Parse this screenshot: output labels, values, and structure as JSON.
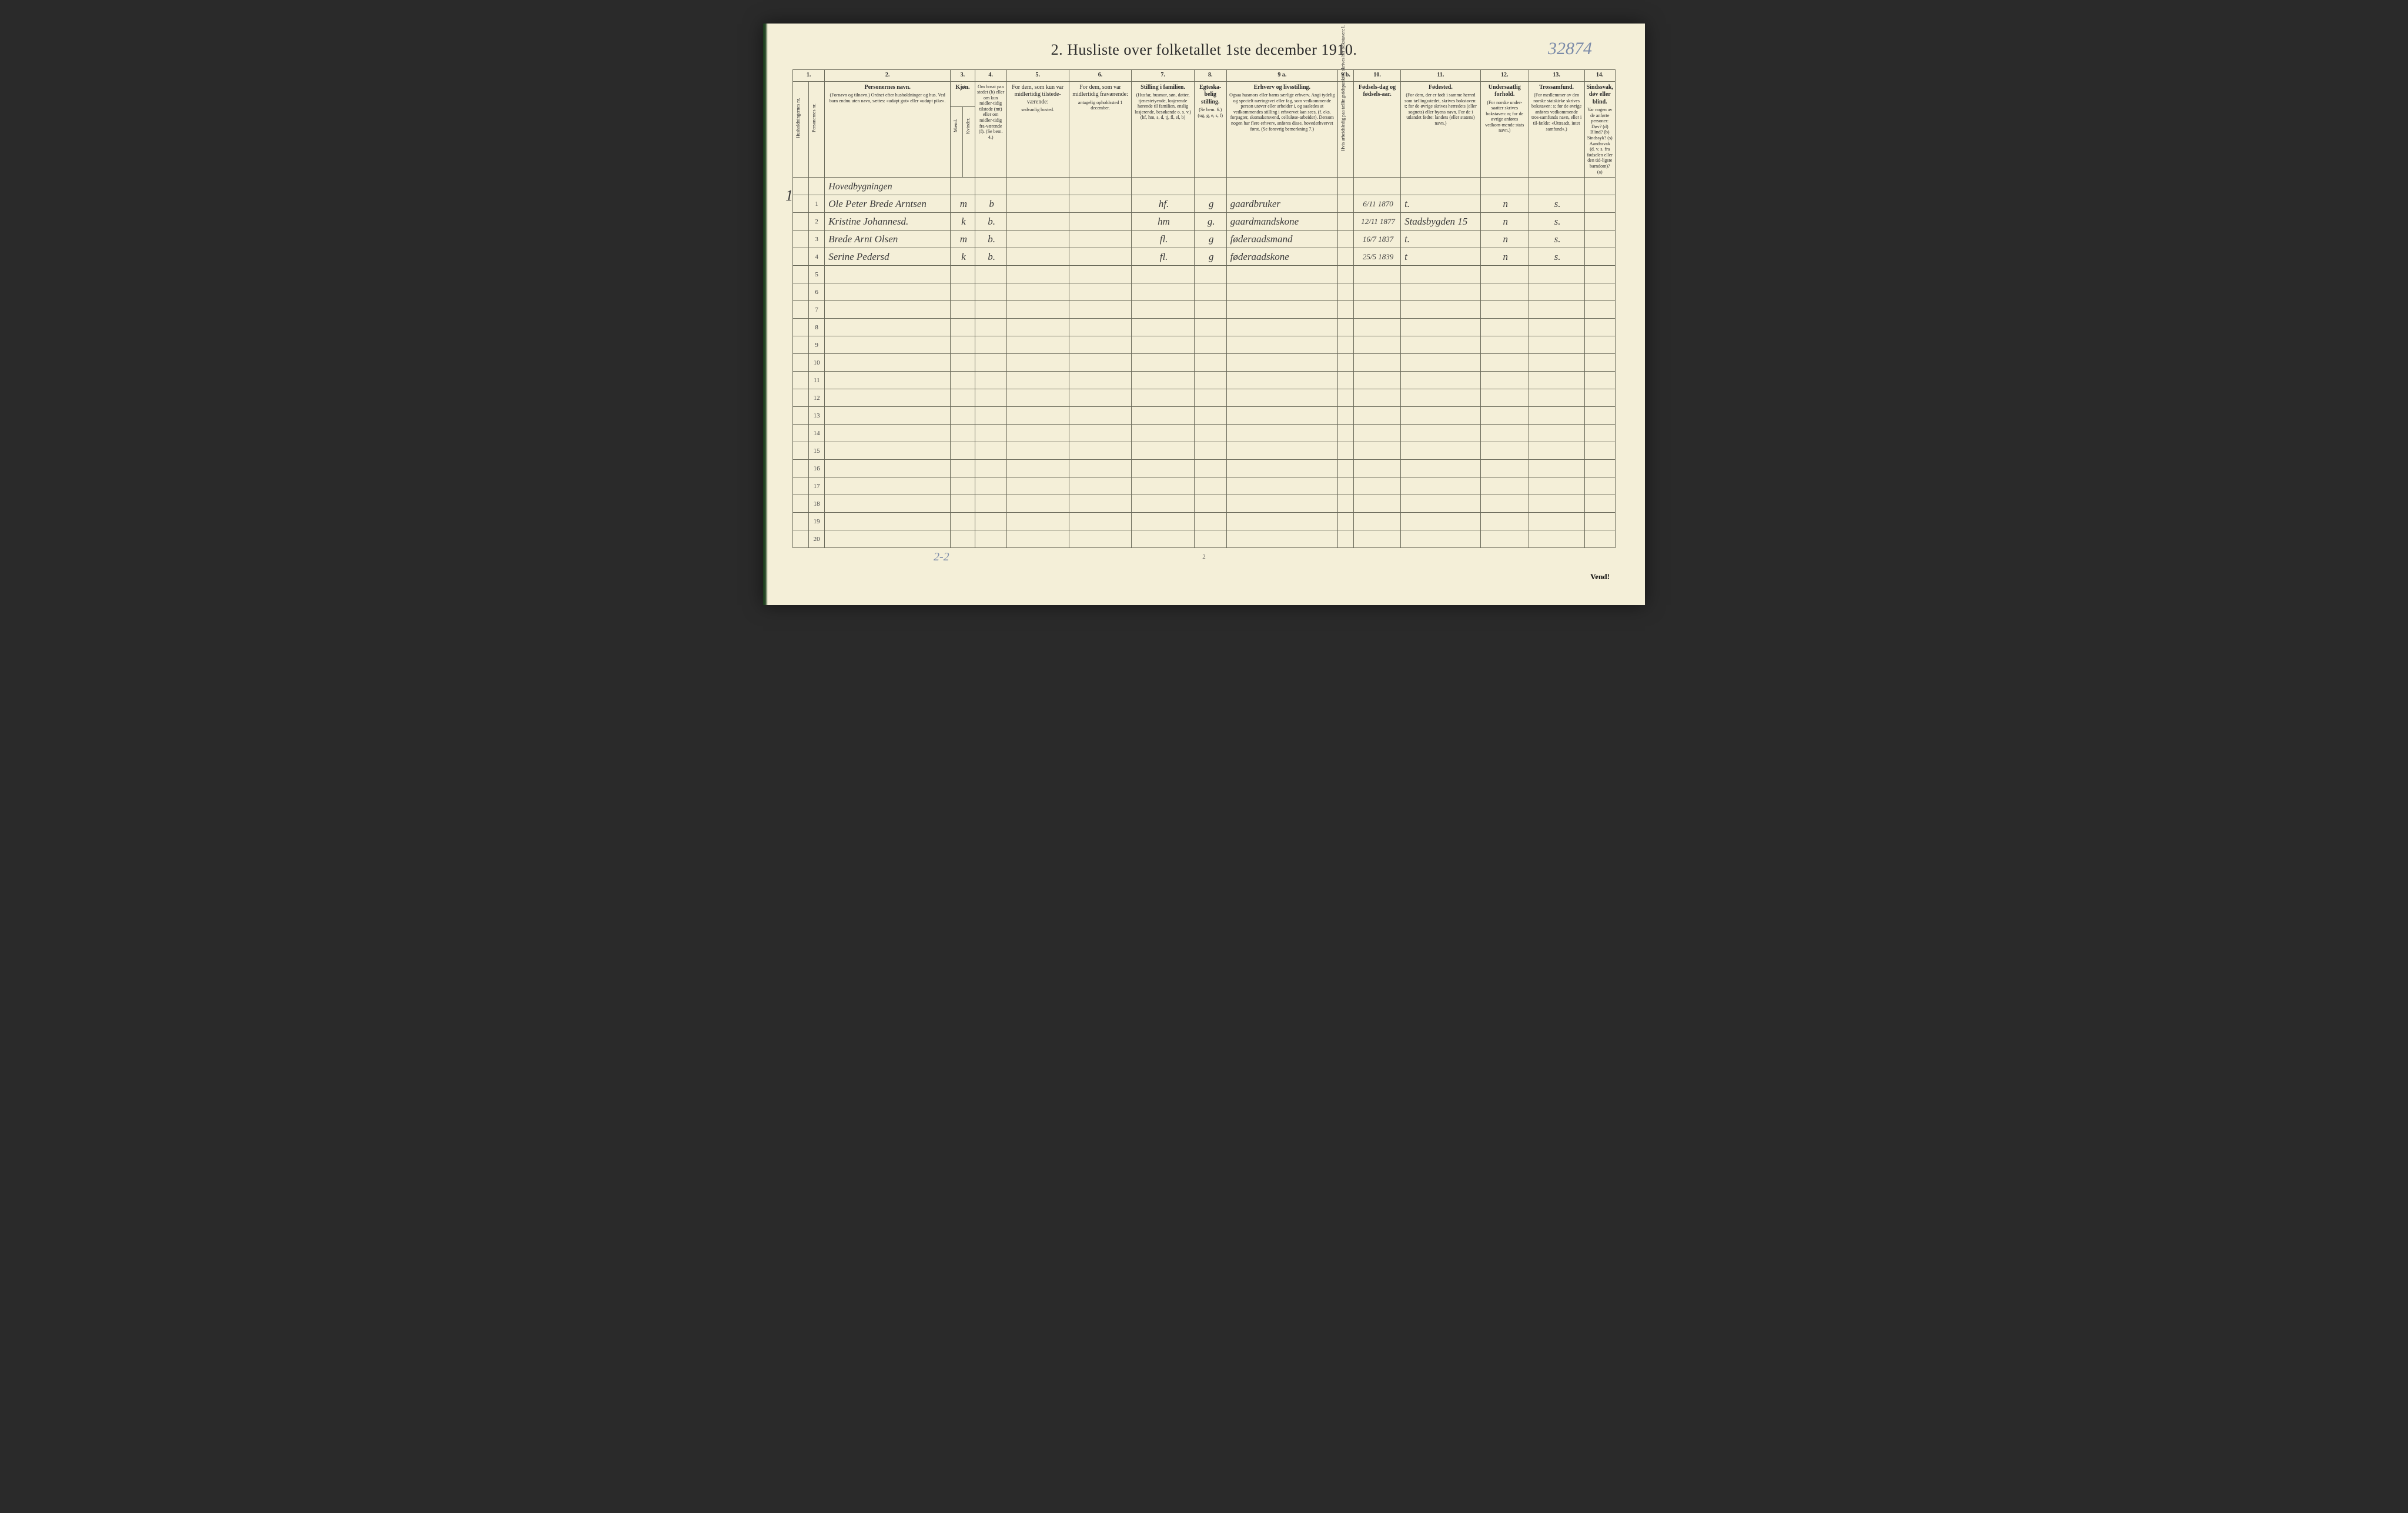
{
  "title": "2.  Husliste over folketallet 1ste december 1910.",
  "handwritten_id": "32874",
  "page_number": "2",
  "vend": "Vend!",
  "bottom_handwritten": "2-2",
  "household_mark": "1",
  "columns": {
    "c1": "1.",
    "c2": "2.",
    "c3": "3.",
    "c4": "4.",
    "c5": "5.",
    "c6": "6.",
    "c7": "7.",
    "c8": "8.",
    "c9a": "9 a.",
    "c9b": "9 b.",
    "c10": "10.",
    "c11": "11.",
    "c12": "12.",
    "c13": "13.",
    "c14": "14."
  },
  "headers": {
    "h1": "Husholdningernes nr.",
    "h1b": "Personernes nr.",
    "h2_main": "Personernes navn.",
    "h2_sub": "(Fornavn og tilnavn.)\nOrdnet efter husholdninger og hus.\nVed barn endnu uten navn, sættes: «udøpt gut» eller «udøpt pike».",
    "h3_main": "Kjøn.",
    "h3_m": "Mænd.",
    "h3_k": "Kvinder.",
    "h3_mk": "m.  k.",
    "h4_main": "Om bosat paa stedet (b) eller om kun midler-tidig tilstede (mt) eller om midler-tidig fra-værende (f). (Se bem. 4.)",
    "h5_main": "For dem, som kun var midlertidig tilstede-værende:",
    "h5_sub": "sedvanlig bosted.",
    "h6_main": "For dem, som var midlertidig fraværende:",
    "h6_sub": "antagelig opholdssted 1 december.",
    "h7_main": "Stilling i familien.",
    "h7_sub": "(Husfar, husmor, søn, datter, tjenestetyende, losjerende hørende til familien, enslig losjerende, besøkende o. s. v.)\n(hf, hm, s, d, tj, fl, el, b)",
    "h8_main": "Egteska-belig stilling.",
    "h8_sub": "(Se bem. 6.)\n(ug, g, e, s, f)",
    "h9a_main": "Erhverv og livsstilling.",
    "h9a_sub": "Ogsaa husmors eller barns særlige erhverv. Angi tydelig og specielt næringsvei eller fag, som vedkommende person utøver eller arbeider i, og saaledes at vedkommendes stilling i erhvervet kan sees, (f. eks. forpagter, skomakersvend, celluløse-arbeider). Dersom nogen har flere erhverv, anføres disse, hovederhvervet først.\n(Se forøvrig bemerkning 7.)",
    "h9b": "Hvis arbeidsledig paa tællingstidspunktet, skrives her bokstaven: l.",
    "h10_main": "Fødsels-dag og fødsels-aar.",
    "h11_main": "Fødested.",
    "h11_sub": "(For dem, der er født i samme herred som tællingsstedet, skrives bokstaven: t; for de øvrige skrives herredets (eller sognets) eller byens navn. For de i utlandet fødte: landets (eller statens) navn.)",
    "h12_main": "Undersaatlig forhold.",
    "h12_sub": "(For norske under-saatter skrives bokstaven: n; for de øvrige anføres vedkom-mende stats navn.)",
    "h13_main": "Trossamfund.",
    "h13_sub": "(For medlemmer av den norske statskirke skrives bokstaven: s; for de øvrige anføres vedkommende tros-samfunds navn, eller i til-fælde: «Uttraadt, intet samfund».)",
    "h14_main": "Sindssvak, døv eller blind.",
    "h14_sub": "Var nogen av de anførte personer:\nDøv?        (d)\nBlind?       (b)\nSindssyk?  (s)\nAandssvak (d. v. s. fra fødselen eller den tid-ligste barndom)?  (a)"
  },
  "section_label": "Hovedbygningen",
  "rows": [
    {
      "num": "1",
      "name": "Ole Peter Brede Arntsen",
      "sex": "m",
      "res": "b",
      "c5": "",
      "c6": "",
      "fam": "hf.",
      "mar": "g",
      "occ": "gaardbruker",
      "c9b": "",
      "dob": "6/11 1870",
      "birthplace": "t.",
      "nat": "n",
      "rel": "s."
    },
    {
      "num": "2",
      "name": "Kristine Johannesd.",
      "sex": "k",
      "res": "b.",
      "c5": "",
      "c6": "",
      "fam": "hm",
      "mar": "g.",
      "occ": "gaardmandskone",
      "c9b": "",
      "dob": "12/11 1877",
      "birthplace": "Stadsbygden 15",
      "nat": "n",
      "rel": "s."
    },
    {
      "num": "3",
      "name": "Brede Arnt Olsen",
      "sex": "m",
      "res": "b.",
      "c5": "",
      "c6": "",
      "fam": "fl.",
      "mar": "g",
      "occ": "føderaadsmand",
      "c9b": "",
      "dob": "16/7 1837",
      "birthplace": "t.",
      "nat": "n",
      "rel": "s."
    },
    {
      "num": "4",
      "name": "Serine Pedersd",
      "sex": "k",
      "res": "b.",
      "c5": "",
      "c6": "",
      "fam": "fl.",
      "mar": "g",
      "occ": "føderaadskone",
      "c9b": "",
      "dob": "25/5 1839",
      "birthplace": "t",
      "nat": "n",
      "rel": "s."
    }
  ],
  "empty_rows": [
    "5",
    "6",
    "7",
    "8",
    "9",
    "10",
    "11",
    "12",
    "13",
    "14",
    "15",
    "16",
    "17",
    "18",
    "19",
    "20"
  ],
  "colors": {
    "paper": "#f4efd8",
    "ink": "#2a2a2a",
    "rule": "#6a6a5a",
    "pencil": "#7a8aa8",
    "handwriting": "#3a3a3a"
  },
  "col_widths_pct": [
    2,
    2,
    16,
    1.5,
    1.5,
    4,
    8,
    8,
    8,
    4,
    14,
    2,
    6,
    10,
    6,
    10,
    10
  ]
}
